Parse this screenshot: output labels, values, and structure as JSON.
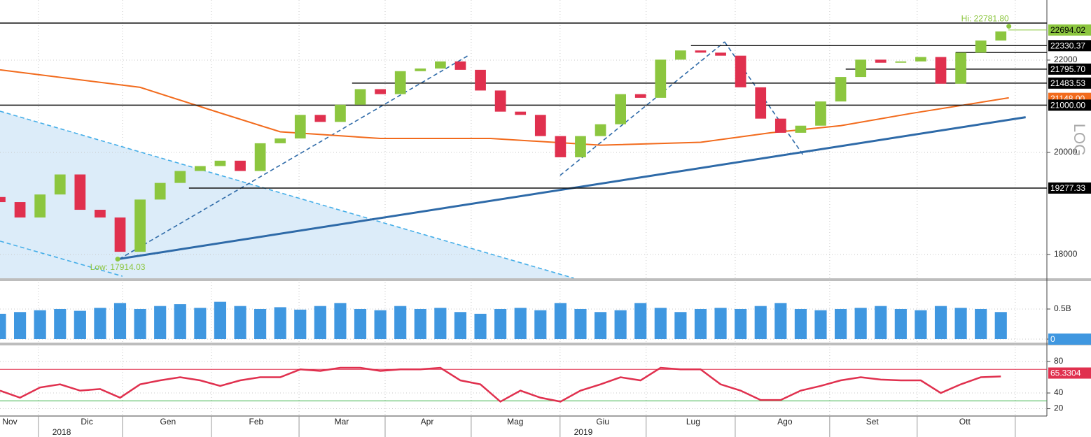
{
  "chart_data": [
    {
      "type": "candlestick",
      "log_scale": true,
      "grid": true,
      "xlim": [
        0,
        52.3
      ],
      "ylim": [
        17563,
        23408
      ],
      "yticks": [
        18000,
        20000,
        22000
      ],
      "axis_label": "LOG",
      "month_starts": [
        1.92,
        6.12,
        10.56,
        14.94,
        19.24,
        23.54,
        27.98,
        32.28,
        36.73,
        41.45,
        45.82,
        50.72
      ],
      "x": [
        0,
        1,
        2,
        3,
        4,
        5,
        6,
        7,
        8,
        9,
        10,
        11,
        12,
        13,
        14,
        15,
        16,
        17,
        18,
        19,
        20,
        21,
        22,
        23,
        24,
        25,
        26,
        27,
        28,
        29,
        30,
        31,
        32,
        33,
        34,
        35,
        36,
        37,
        38,
        39,
        40,
        41,
        42,
        43,
        44,
        45,
        46,
        47,
        48,
        49,
        50
      ],
      "open": [
        19100,
        19000,
        18700,
        19150,
        19550,
        18850,
        18700,
        18050,
        19050,
        19380,
        19620,
        19720,
        19830,
        19620,
        20190,
        20290,
        20790,
        20640,
        21010,
        21350,
        21240,
        21750,
        21810,
        21970,
        21780,
        21320,
        20860,
        20790,
        20340,
        19900,
        20340,
        20590,
        21240,
        21160,
        22010,
        22220,
        22170,
        22100,
        21390,
        20710,
        20410,
        20560,
        21080,
        21620,
        22010,
        21940,
        21970,
        22070,
        21470,
        22170,
        22450
      ],
      "close": [
        19000,
        18700,
        19150,
        19550,
        18850,
        18700,
        18050,
        19050,
        19380,
        19620,
        19720,
        19830,
        19620,
        20190,
        20290,
        20790,
        20640,
        21010,
        21350,
        21240,
        21750,
        21810,
        21970,
        21780,
        21320,
        20860,
        20790,
        20340,
        19900,
        20340,
        20590,
        21240,
        21160,
        22010,
        22220,
        22170,
        22100,
        21390,
        20710,
        20410,
        20560,
        21080,
        21620,
        22010,
        21940,
        21970,
        22070,
        21470,
        22170,
        22450,
        22660
      ],
      "up_color": "#8cc63f",
      "down_color": "#e0304e",
      "ma": {
        "color": "#f26b1d",
        "x": [
          0,
          7,
          10.5,
          14,
          19,
          24.5,
          30,
          35,
          38.5,
          42,
          45.5,
          50.4
        ],
        "values": [
          21780,
          21390,
          20900,
          20430,
          20290,
          20290,
          20150,
          20210,
          20410,
          20560,
          20820,
          21160
        ],
        "last": {
          "value": 21148,
          "label": "21148.00"
        }
      },
      "trendlines": [
        {
          "x": [
            0,
            28.68
          ],
          "y": [
            20870,
            17563
          ],
          "style": "dashed",
          "color": "#45aee8",
          "fill": "#dcecf9"
        },
        {
          "x": [
            0,
            6.12
          ],
          "y": [
            18250,
            17600
          ],
          "style": "dashed",
          "color": "#45aee8"
        },
        {
          "x": [
            5.95,
            23.36
          ],
          "y": [
            17914.03,
            22095
          ],
          "style": "dashed",
          "color": "#2e6aa8"
        },
        {
          "x": [
            27.98,
            36.2
          ],
          "y": [
            19530,
            22418
          ],
          "style": "dashed",
          "color": "#2e6aa8"
        },
        {
          "x": [
            36.2,
            40.12
          ],
          "y": [
            22418,
            19950
          ],
          "style": "dashed",
          "color": "#2e6aa8"
        },
        {
          "x": [
            5.88,
            51.24
          ],
          "y": [
            17914.03,
            20740
          ],
          "style": "solid",
          "color": "#2e6aa8"
        }
      ],
      "levels": [
        {
          "value": 22858,
          "from": 0
        },
        {
          "value": 22330.37,
          "from": 34.52,
          "tag": true
        },
        {
          "value": 22175,
          "from": 47.74
        },
        {
          "value": 21795.7,
          "label": "21795.70",
          "from": 42.25,
          "tag": true
        },
        {
          "value": 21483.53,
          "from": 17.59,
          "tag": true
        },
        {
          "value": 21000,
          "label": "21000.00",
          "from": 0,
          "tag": true
        },
        {
          "value": 19277.33,
          "from": 9.44,
          "tag": true
        }
      ],
      "last": {
        "value": 22694.02,
        "from": 50.37,
        "color": "#8cc63f"
      },
      "annotations": [
        {
          "text": "Hi: 22781.80",
          "x": 50.4,
          "y": 22781.8,
          "position": "above",
          "color": "#8cc63f"
        },
        {
          "text": "Low: 17914.03",
          "x": 5.88,
          "y": 17914.03,
          "position": "below",
          "color": "#8cc63f"
        }
      ]
    },
    {
      "type": "bar",
      "grid": true,
      "color": "#3f97e0",
      "xlim": [
        0,
        52.3
      ],
      "ylim": [
        0,
        0.953
      ],
      "yticks": [
        0,
        {
          "value": 0.5,
          "label": "0.5B"
        }
      ],
      "x": [
        0,
        1,
        2,
        3,
        4,
        5,
        6,
        7,
        8,
        9,
        10,
        11,
        12,
        13,
        14,
        15,
        16,
        17,
        18,
        19,
        20,
        21,
        22,
        23,
        24,
        25,
        26,
        27,
        28,
        29,
        30,
        31,
        32,
        33,
        34,
        35,
        36,
        37,
        38,
        39,
        40,
        41,
        42,
        43,
        44,
        45,
        46,
        47,
        48,
        49,
        50
      ],
      "values": [
        0.42,
        0.45,
        0.48,
        0.5,
        0.47,
        0.52,
        0.6,
        0.5,
        0.55,
        0.58,
        0.52,
        0.62,
        0.55,
        0.5,
        0.53,
        0.49,
        0.55,
        0.6,
        0.5,
        0.48,
        0.55,
        0.5,
        0.52,
        0.45,
        0.42,
        0.5,
        0.52,
        0.48,
        0.6,
        0.5,
        0.45,
        0.48,
        0.6,
        0.52,
        0.45,
        0.5,
        0.52,
        0.5,
        0.55,
        0.6,
        0.5,
        0.48,
        0.5,
        0.52,
        0.55,
        0.5,
        0.48,
        0.55,
        0.52,
        0.5,
        0.45
      ]
    },
    {
      "type": "line",
      "grid": true,
      "color": "#e0304e",
      "xlim": [
        0,
        52.3
      ],
      "ylim": [
        10.7,
        97.8
      ],
      "yticks": [
        20,
        40,
        80
      ],
      "x": [
        0,
        1,
        2,
        3,
        4,
        5,
        6,
        7,
        8,
        9,
        10,
        11,
        12,
        13,
        14,
        15,
        16,
        17,
        18,
        19,
        20,
        21,
        22,
        23,
        24,
        25,
        26,
        27,
        28,
        29,
        30,
        31,
        32,
        33,
        34,
        35,
        36,
        37,
        38,
        39,
        40,
        41,
        42,
        43,
        44,
        45,
        46,
        47,
        48,
        49,
        50
      ],
      "values": [
        43,
        34,
        47,
        51,
        43,
        45,
        34,
        51,
        56,
        60,
        56,
        49,
        56,
        60,
        60,
        70,
        68,
        72,
        72,
        68,
        70,
        70,
        72,
        56,
        51,
        29,
        43,
        34,
        29,
        43,
        51,
        60,
        56,
        72,
        70,
        70,
        51,
        43,
        31,
        31,
        43,
        49,
        56,
        60,
        57,
        56,
        56,
        40,
        51,
        60,
        61
      ],
      "bands": [
        {
          "value": 70,
          "color": "#e0304e"
        },
        {
          "value": 30,
          "color": "#3cb44b"
        }
      ],
      "last": {
        "value": 65.3304,
        "color": "#e0304e"
      },
      "xticks": [
        {
          "value": 0.49,
          "label": "Nov"
        },
        {
          "value": 4.34,
          "label": "Dic"
        },
        {
          "value": 8.39,
          "label": "Gen"
        },
        {
          "value": 12.8,
          "label": "Feb"
        },
        {
          "value": 17.07,
          "label": "Mar"
        },
        {
          "value": 21.34,
          "label": "Apr"
        },
        {
          "value": 25.74,
          "label": "Mag"
        },
        {
          "value": 30.11,
          "label": "Giu"
        },
        {
          "value": 34.63,
          "label": "Lug"
        },
        {
          "value": 39.21,
          "label": "Ago"
        },
        {
          "value": 43.58,
          "label": "Set"
        },
        {
          "value": 48.2,
          "label": "Ott"
        }
      ],
      "years": [
        {
          "value": 3.08,
          "label": "2018"
        },
        {
          "value": 29.14,
          "label": "2019"
        }
      ]
    }
  ]
}
